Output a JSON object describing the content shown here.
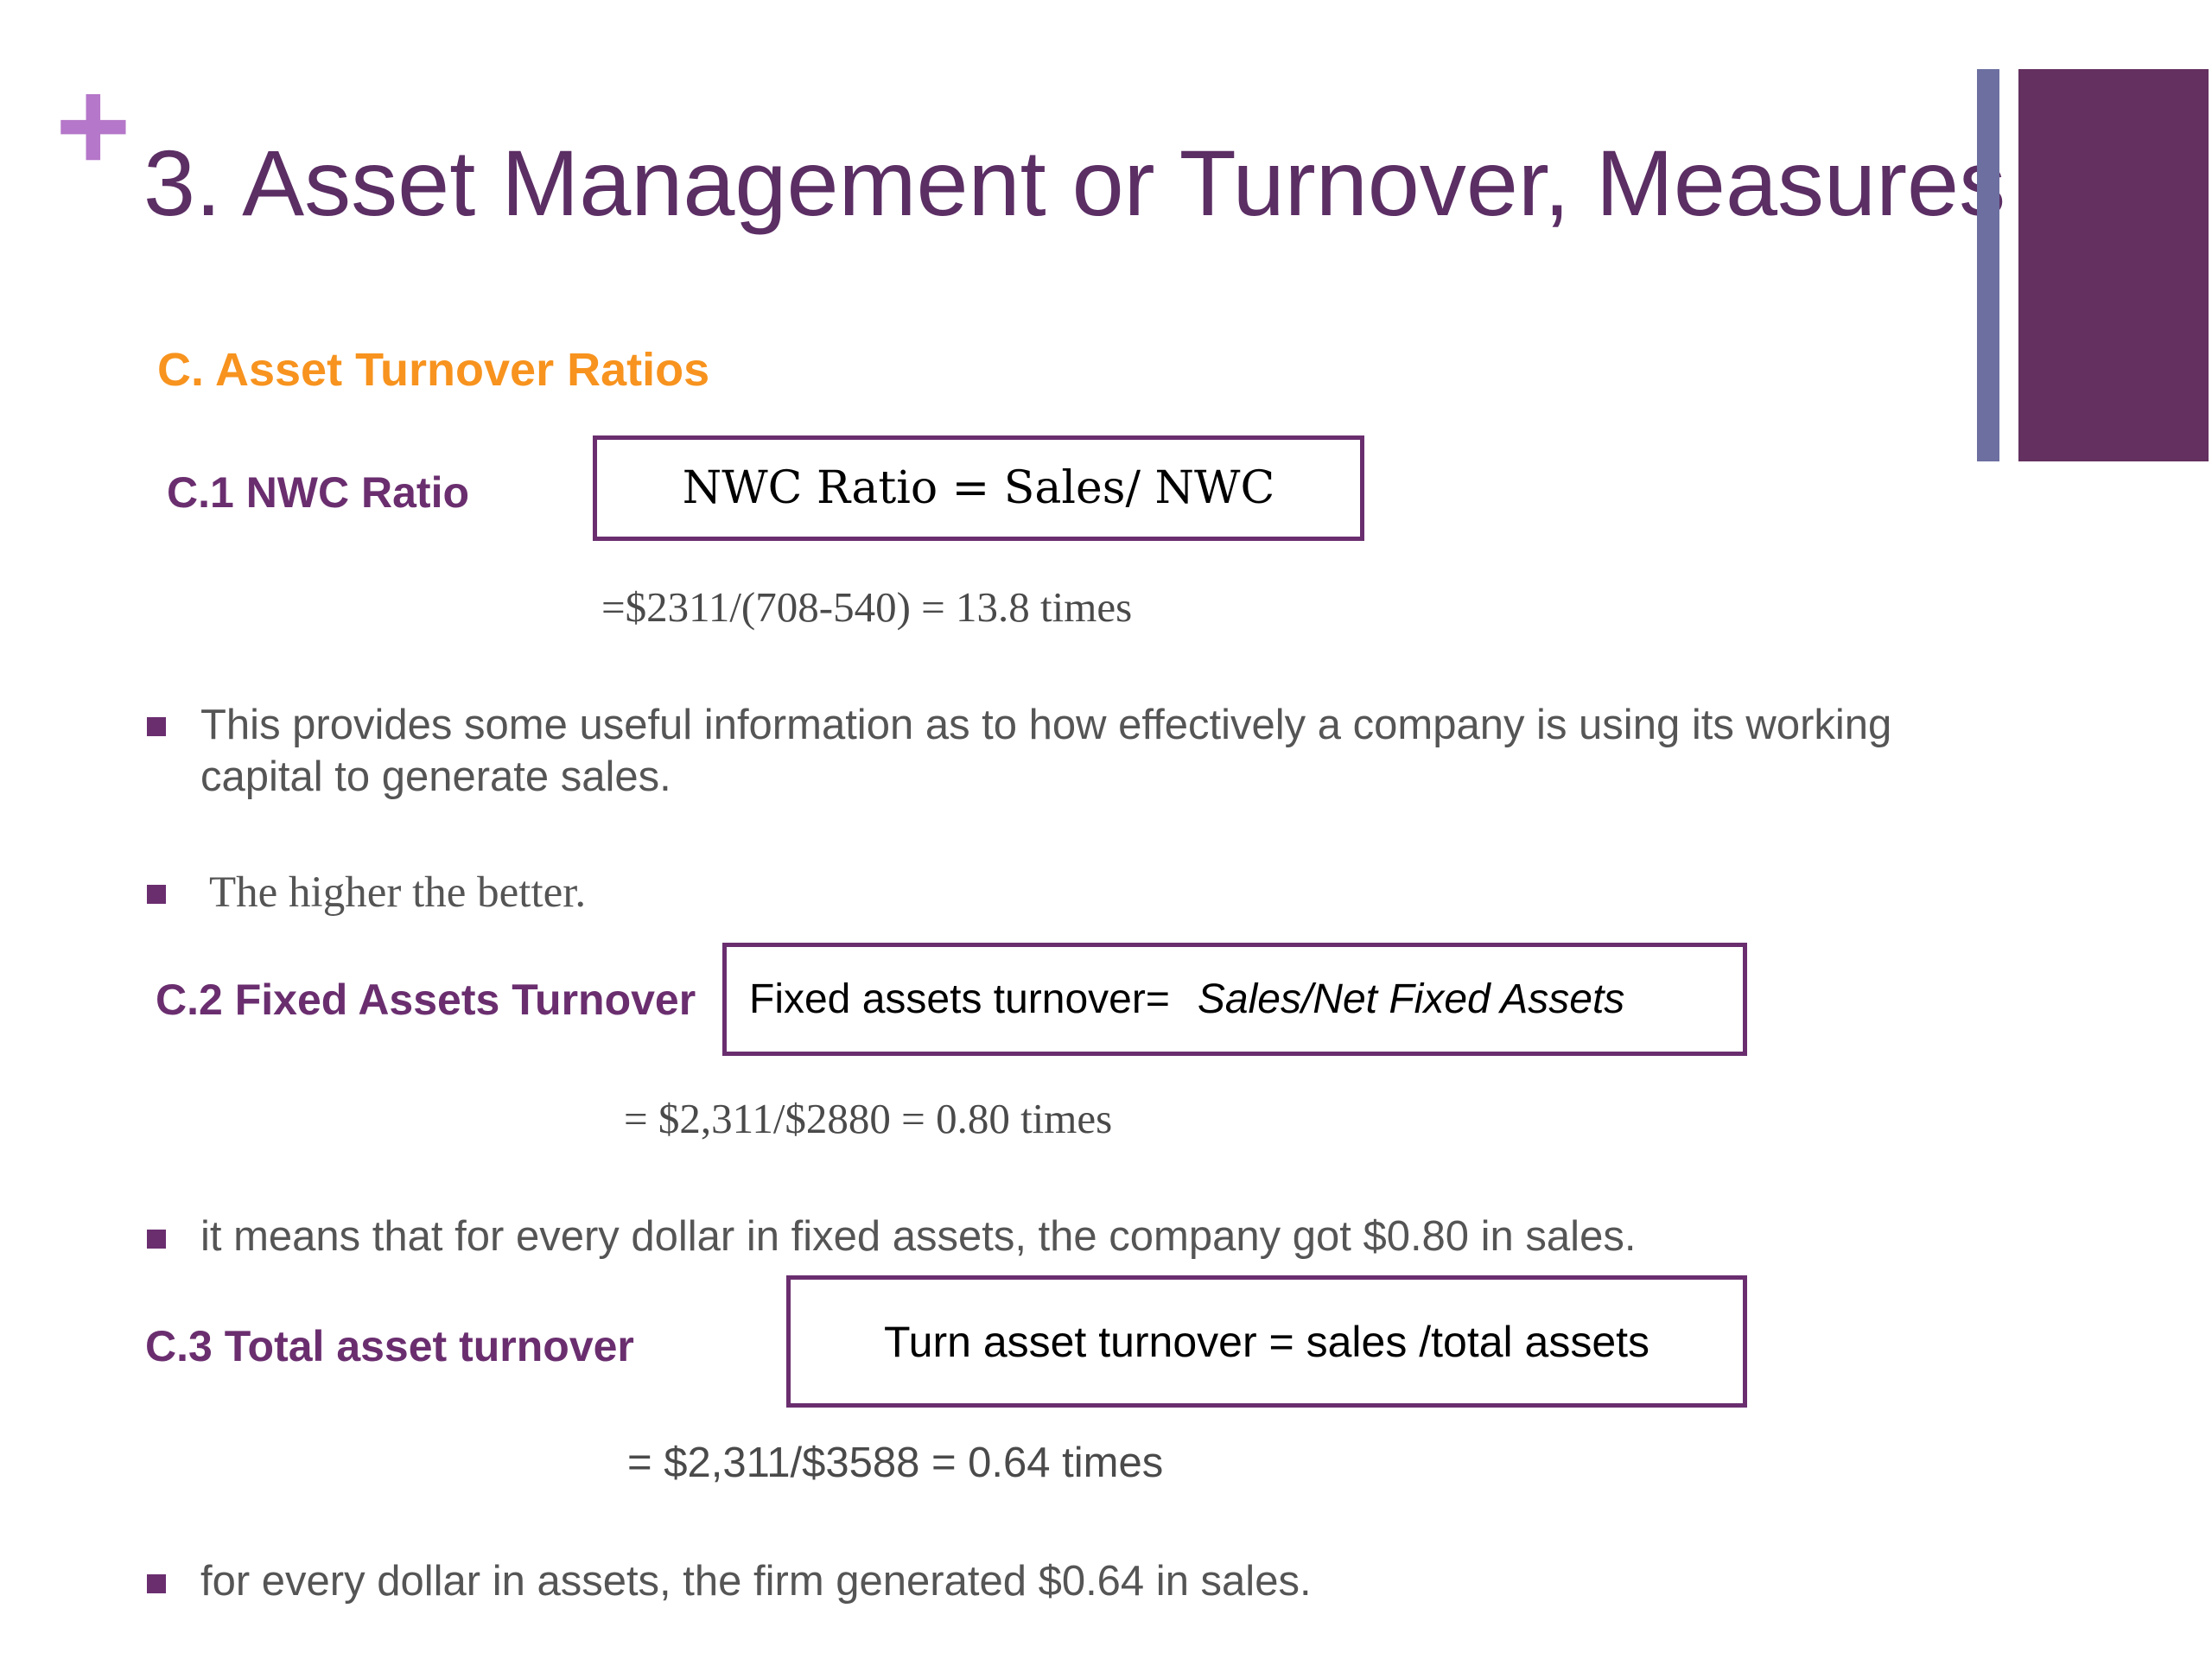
{
  "slide": {
    "plus_glyph": "+",
    "title": "3. Asset Management or Turnover, Measures",
    "section_heading": "C. Asset Turnover Ratios",
    "items": [
      {
        "label": "C.1 NWC Ratio",
        "formula": "NWC Ratio = Sales/ NWC",
        "calculation": "=$2311/(708-540) = 13.8 times"
      },
      {
        "label": "C.2 Fixed Assets Turnover",
        "formula_prefix": "Fixed assets turnover=",
        "formula_italic": "Sales/Net Fixed Assets",
        "calculation": "= $2,311/$2880 = 0.80 times"
      },
      {
        "label": "C.3 Total asset turnover",
        "formula": "Turn asset turnover = sales /total assets",
        "calculation": "=  $2,311/$3588 = 0.64 times"
      }
    ],
    "bullets": [
      "This provides some useful information as to how effectively a company is using its working capital to generate sales.",
      "The higher the better.",
      "it means that for every dollar in fixed assets, the company got $0.80 in sales.",
      "for every dollar in assets, the firm generated $0.64 in sales."
    ]
  },
  "colors": {
    "title": "#5b2e64",
    "accent_purple": "#6a2e6f",
    "section_orange": "#f7931e",
    "plus_pink": "#b577c9",
    "deco_bar_thin": "#6c6fa0",
    "deco_bar_wide": "#64305f"
  }
}
